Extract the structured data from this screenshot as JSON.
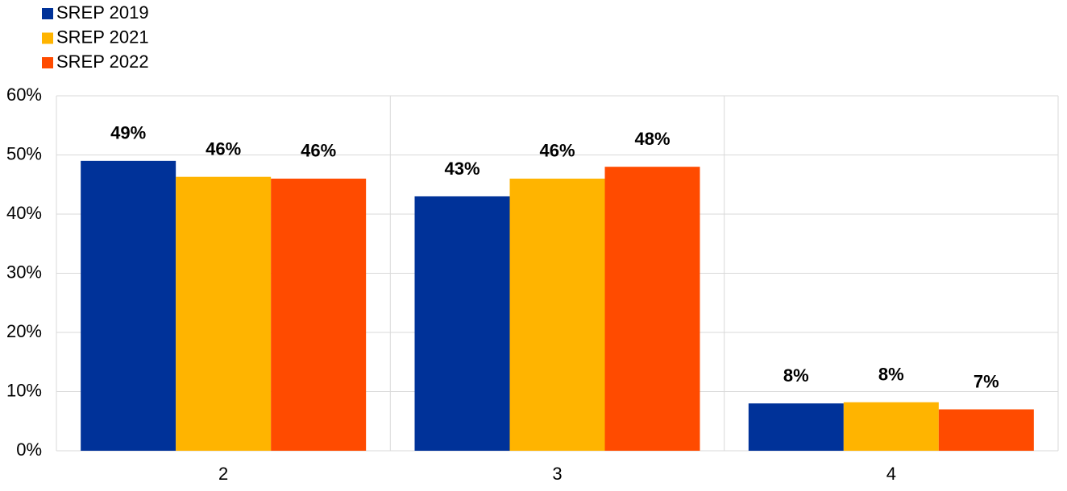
{
  "chart_data": {
    "type": "bar",
    "categories": [
      "2",
      "3",
      "4"
    ],
    "series": [
      {
        "name": "SREP 2019",
        "color": "#003299",
        "values": [
          49,
          43,
          8
        ],
        "value_labels": [
          "49%",
          "43%",
          "8%"
        ]
      },
      {
        "name": "SREP 2021",
        "color": "#ffb400",
        "values": [
          46.3,
          46,
          8.2
        ],
        "value_labels": [
          "46%",
          "46%",
          "8%"
        ]
      },
      {
        "name": "SREP 2022",
        "color": "#ff4b00",
        "values": [
          46,
          48,
          7
        ],
        "value_labels": [
          "46%",
          "48%",
          "7%"
        ]
      }
    ],
    "ylim": [
      0,
      60
    ],
    "yticks": [
      {
        "value": 0,
        "label": "0%"
      },
      {
        "value": 10,
        "label": "10%"
      },
      {
        "value": 20,
        "label": "20%"
      },
      {
        "value": 30,
        "label": "30%"
      },
      {
        "value": 40,
        "label": "40%"
      },
      {
        "value": 50,
        "label": "50%"
      },
      {
        "value": 60,
        "label": "60%"
      }
    ],
    "grid": true
  }
}
